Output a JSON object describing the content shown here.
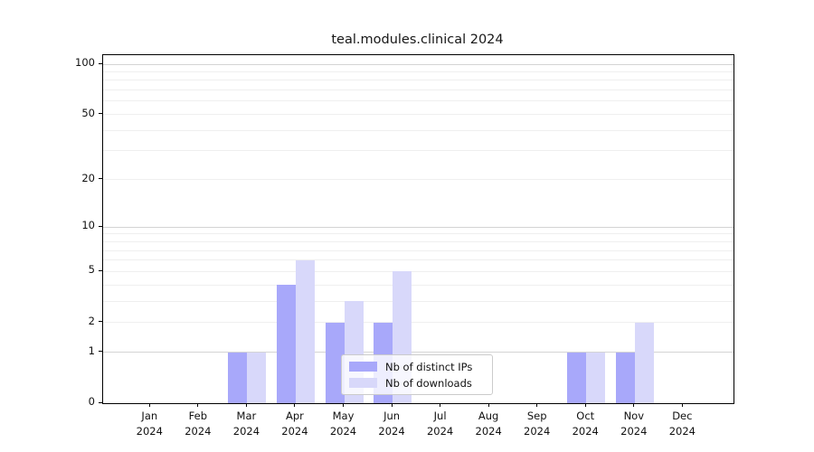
{
  "title": "teal.modules.clinical 2024",
  "chart_data": {
    "type": "bar",
    "title": "teal.modules.clinical 2024",
    "categories": [
      "Jan",
      "Feb",
      "Mar",
      "Apr",
      "May",
      "Jun",
      "Jul",
      "Aug",
      "Sep",
      "Oct",
      "Nov",
      "Dec"
    ],
    "year_label": "2024",
    "series": [
      {
        "name": "Nb of distinct IPs",
        "color": "#a8a8fa",
        "values": [
          0,
          0,
          1,
          4,
          2,
          2,
          0,
          0,
          0,
          1,
          1,
          0
        ]
      },
      {
        "name": "Nb of downloads",
        "color": "#d8d8fa",
        "values": [
          0,
          0,
          1,
          6,
          3,
          5,
          0,
          0,
          0,
          1,
          2,
          0
        ]
      }
    ],
    "y_scale": "log1p",
    "y_ticks": [
      0,
      1,
      2,
      5,
      10,
      20,
      50,
      100
    ],
    "y_major_gridlines": [
      1,
      10,
      100
    ],
    "y_minor_gridlines": [
      2,
      3,
      4,
      5,
      6,
      7,
      8,
      9,
      20,
      30,
      40,
      50,
      60,
      70,
      80,
      90
    ],
    "ylim": [
      0,
      113
    ],
    "grid": true,
    "legend_position": "inside-bottom-center"
  }
}
